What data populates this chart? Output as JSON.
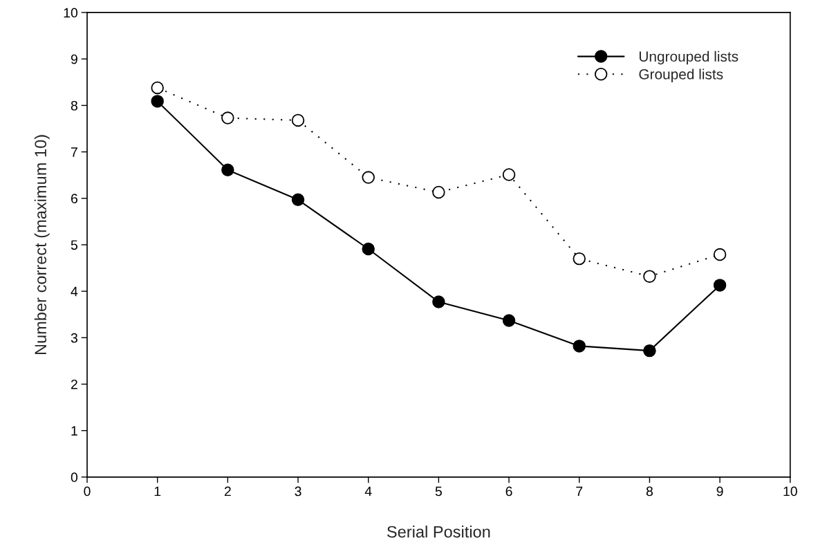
{
  "chart_data": {
    "type": "line",
    "xlabel": "Serial Position",
    "ylabel": "Number correct (maximum 10)",
    "x": [
      1,
      2,
      3,
      4,
      5,
      6,
      7,
      8,
      9
    ],
    "series": [
      {
        "name": "Ungrouped lists",
        "color": "#000000",
        "line_style": "solid",
        "values": [
          8.09,
          6.61,
          5.97,
          4.91,
          3.77,
          3.37,
          2.82,
          2.72,
          4.13
        ]
      },
      {
        "name": "Grouped lists",
        "color": "#000000",
        "line_style": "dotted",
        "colors": [
          "#ffffff",
          "#ffffff",
          "#ffffff",
          "#ffffff",
          "#ffffff",
          "#ffffff",
          "#ffffff",
          "#ffffff",
          "#ffffff"
        ],
        "values": [
          8.38,
          7.73,
          7.68,
          6.45,
          6.13,
          6.51,
          4.7,
          4.32,
          4.79
        ]
      }
    ],
    "xlim": [
      0,
      10
    ],
    "xticks": [
      0,
      1,
      2,
      3,
      4,
      5,
      6,
      7,
      8,
      9,
      10
    ],
    "ylim": [
      0,
      10
    ],
    "yticks": [
      0,
      1,
      2,
      3,
      4,
      5,
      6,
      7,
      8,
      9,
      10
    ],
    "marker": "circle",
    "grid": false,
    "legend": "top right"
  }
}
